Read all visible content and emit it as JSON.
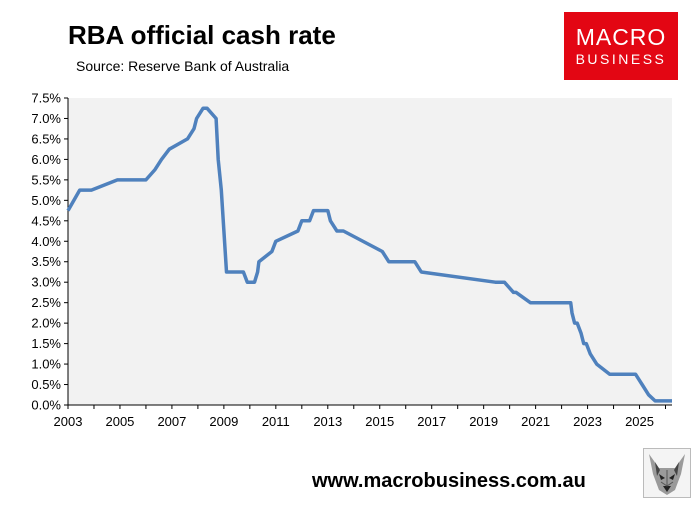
{
  "header": {
    "title": "RBA official cash rate",
    "subtitle": "Source: Reserve Bank of Australia"
  },
  "logo": {
    "line1": "MACRO",
    "line2": "BUSINESS",
    "color": "#e30613"
  },
  "footer": {
    "website": "www.macrobusiness.com.au"
  },
  "chart_data": {
    "type": "line",
    "title": "RBA official cash rate",
    "subtitle": "Source: Reserve Bank of Australia",
    "xlabel": "",
    "ylabel": "",
    "xlim": [
      2003.0,
      2026.25
    ],
    "ylim": [
      0,
      7.5
    ],
    "x_ticks": [
      "2003",
      "2005",
      "2007",
      "2009",
      "2011",
      "2013",
      "2015",
      "2017",
      "2019",
      "2021",
      "2023",
      "2025"
    ],
    "x_tick_values": [
      2003,
      2005,
      2007,
      2009,
      2011,
      2013,
      2015,
      2017,
      2019,
      2021,
      2023,
      2025
    ],
    "y_ticks": [
      "0.0%",
      "0.5%",
      "1.0%",
      "1.5%",
      "2.0%",
      "2.5%",
      "3.0%",
      "3.5%",
      "4.0%",
      "4.5%",
      "5.0%",
      "5.5%",
      "6.0%",
      "6.5%",
      "7.0%",
      "7.5%"
    ],
    "y_tick_values": [
      0,
      0.5,
      1.0,
      1.5,
      2.0,
      2.5,
      3.0,
      3.5,
      4.0,
      4.5,
      5.0,
      5.5,
      6.0,
      6.5,
      7.0,
      7.5
    ],
    "grid": false,
    "plot_background": "#f2f2f2",
    "line_color": "#4f81bd",
    "series": [
      {
        "step": true,
        "x": [
          2003.0,
          2003.45,
          2003.9,
          2004.9,
          2005.0,
          2006.0,
          2006.35,
          2006.6,
          2006.9,
          2007.6,
          2007.85,
          2007.95,
          2008.2,
          2008.35,
          2008.7,
          2008.78,
          2008.9,
          2009.0,
          2009.1,
          2009.75,
          2009.9,
          2010.0,
          2010.18,
          2010.3,
          2010.35,
          2010.85,
          2011.0,
          2011.85,
          2012.0,
          2012.3,
          2012.45,
          2012.75,
          2012.9,
          2013.0,
          2013.1,
          2013.35,
          2013.6,
          2015.1,
          2015.35,
          2016.35,
          2016.6,
          2019.45,
          2019.6,
          2019.8,
          2020.15,
          2020.25,
          2020.8,
          2022.35,
          2022.4,
          2022.5,
          2022.6,
          2022.75,
          2022.85,
          2022.95,
          2023.1,
          2023.35,
          2023.85,
          2024.85,
          2025.1,
          2025.35,
          2025.6,
          2025.75
        ],
        "values": [
          4.75,
          5.25,
          5.25,
          5.5,
          5.5,
          5.5,
          5.75,
          6.0,
          6.25,
          6.5,
          6.75,
          7.0,
          7.25,
          7.25,
          7.0,
          6.0,
          5.25,
          4.25,
          3.25,
          3.25,
          3.0,
          3.0,
          3.0,
          3.25,
          3.5,
          3.75,
          4.0,
          4.25,
          4.5,
          4.5,
          4.75,
          4.75,
          4.75,
          4.75,
          4.5,
          4.25,
          4.25,
          3.75,
          3.5,
          3.5,
          3.25,
          3.0,
          3.0,
          3.0,
          2.75,
          2.75,
          2.5,
          2.5,
          2.25,
          2.0,
          2.0,
          1.75,
          1.5,
          1.5,
          1.25,
          1.0,
          0.75,
          0.75,
          0.5,
          0.25,
          0.1,
          0.1
        ]
      }
    ]
  }
}
